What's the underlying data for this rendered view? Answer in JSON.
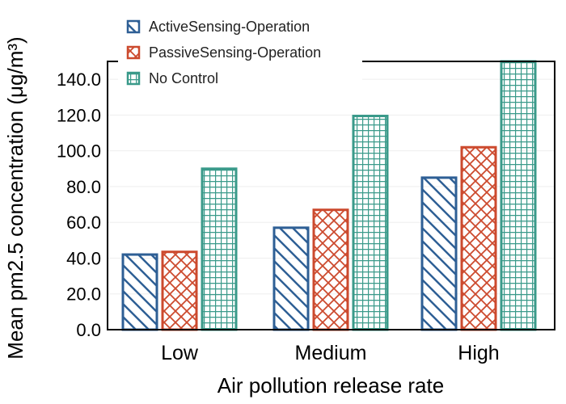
{
  "chart_data": {
    "type": "bar",
    "xlabel": "Air pollution release rate",
    "ylabel": "Mean pm2.5 concentration (μg/m³)",
    "categories": [
      "Low",
      "Medium",
      "High"
    ],
    "ylim": [
      0,
      150
    ],
    "yticks": [
      "0.0",
      "20.0",
      "40.0",
      "60.0",
      "80.0",
      "100.0",
      "120.0",
      "140.0"
    ],
    "grid": true,
    "legend": "top-left",
    "series": [
      {
        "name": "ActiveSensing-Operation",
        "values": [
          42,
          57,
          85
        ],
        "color": "#2e5f95",
        "pattern": "diagonal"
      },
      {
        "name": "PassiveSensing-Operation",
        "values": [
          43.5,
          67,
          102
        ],
        "color": "#cc4a2e",
        "pattern": "crosshatch"
      },
      {
        "name": "No Control",
        "values": [
          90,
          119.5,
          150
        ],
        "color": "#3a9a8a",
        "pattern": "grid"
      }
    ]
  }
}
